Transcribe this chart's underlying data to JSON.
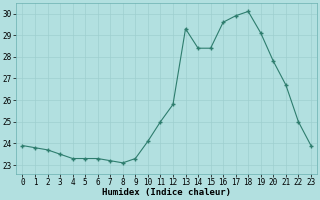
{
  "x": [
    0,
    1,
    2,
    3,
    4,
    5,
    6,
    7,
    8,
    9,
    10,
    11,
    12,
    13,
    14,
    15,
    16,
    17,
    18,
    19,
    20,
    21,
    22,
    23
  ],
  "y": [
    23.9,
    23.8,
    23.7,
    23.5,
    23.3,
    23.3,
    23.3,
    23.2,
    23.1,
    23.3,
    24.1,
    25.0,
    25.8,
    29.3,
    28.4,
    28.4,
    29.6,
    29.9,
    30.1,
    29.1,
    27.8,
    26.7,
    25.0,
    23.9
  ],
  "line_color": "#2e7d6e",
  "marker": "+",
  "marker_size": 4,
  "bg_color": "#b2e0e0",
  "grid_color": "#9ecfcf",
  "xlabel": "Humidex (Indice chaleur)",
  "xlim": [
    -0.5,
    23.5
  ],
  "ylim": [
    22.6,
    30.5
  ],
  "yticks": [
    23,
    24,
    25,
    26,
    27,
    28,
    29,
    30
  ],
  "xticks": [
    0,
    1,
    2,
    3,
    4,
    5,
    6,
    7,
    8,
    9,
    10,
    11,
    12,
    13,
    14,
    15,
    16,
    17,
    18,
    19,
    20,
    21,
    22,
    23
  ],
  "tick_fontsize": 5.5,
  "xlabel_fontsize": 6.5
}
